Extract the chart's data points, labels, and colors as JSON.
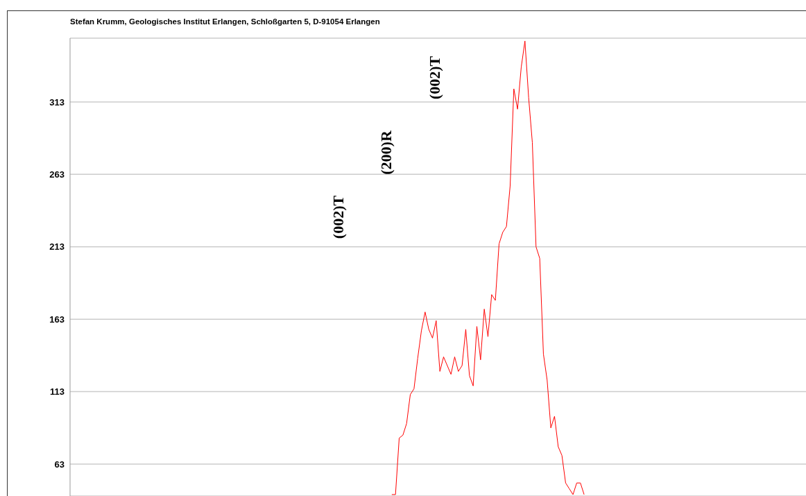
{
  "chart_data": {
    "type": "line",
    "title": "Stefan Krumm, Geologisches Institut Erlangen, Schloßgarten 5, D-91054 Erlangen",
    "annotations": [
      "(002)T",
      "(200)R",
      "(002)T"
    ],
    "categories": [
      null,
      null,
      null,
      null,
      null,
      null,
      null,
      null,
      null,
      null,
      null,
      null,
      null,
      null,
      null,
      null,
      null,
      null,
      null,
      null,
      null,
      null,
      null,
      null,
      null,
      null,
      null,
      null,
      null,
      null,
      null,
      null,
      null,
      null,
      null,
      null,
      null,
      null,
      null,
      null,
      null,
      null,
      null,
      null,
      null,
      null,
      null,
      null,
      null,
      null,
      null,
      null,
      null,
      null,
      null,
      null,
      null,
      null,
      null,
      null,
      null,
      null,
      null,
      null,
      null,
      null,
      null,
      null,
      null,
      null,
      null,
      null,
      null,
      null,
      null,
      null,
      null,
      null,
      null,
      null,
      null,
      null,
      null,
      null,
      null,
      null,
      null,
      null,
      null,
      null,
      null,
      null,
      null,
      null,
      null,
      null,
      null,
      null,
      null,
      null,
      null,
      null,
      null,
      null,
      null,
      null,
      null,
      null,
      null,
      null,
      null,
      null,
      null,
      null,
      null,
      null,
      null,
      null,
      null,
      null,
      null,
      null,
      null,
      null,
      null,
      null,
      null,
      null,
      null,
      null,
      null,
      null,
      null,
      null,
      null,
      null,
      null,
      null,
      null,
      null,
      null,
      null,
      null,
      null,
      null,
      null,
      null,
      null,
      null,
      null,
      null,
      null,
      null,
      null,
      null,
      null,
      null,
      null,
      null,
      null,
      null,
      null,
      null,
      null,
      null,
      null,
      null,
      null,
      null,
      null,
      null,
      null,
      null,
      null,
      null,
      null,
      null,
      null,
      null,
      null,
      null,
      null,
      null,
      null,
      null,
      null,
      null,
      null,
      null,
      null,
      null,
      null,
      null,
      null,
      null,
      null,
      null,
      null,
      null,
      null
    ],
    "series": [
      {
        "color": "#ff0000",
        "values": [
          null,
          null,
          null,
          null,
          null,
          null,
          null,
          null,
          null,
          null,
          null,
          null,
          null,
          null,
          null,
          null,
          null,
          null,
          null,
          null,
          null,
          null,
          null,
          null,
          null,
          null,
          null,
          null,
          null,
          null,
          null,
          null,
          null,
          null,
          null,
          null,
          null,
          null,
          null,
          null,
          null,
          null,
          null,
          null,
          null,
          null,
          null,
          null,
          null,
          null,
          null,
          null,
          null,
          null,
          null,
          null,
          null,
          null,
          null,
          null,
          null,
          null,
          null,
          null,
          null,
          null,
          null,
          null,
          null,
          null,
          null,
          null,
          null,
          null,
          null,
          null,
          null,
          null,
          null,
          null,
          null,
          null,
          null,
          null,
          null,
          null,
          null,
          42,
          42,
          81,
          83,
          91,
          111,
          115,
          136,
          155,
          168,
          156,
          150,
          162,
          127,
          137,
          131,
          125,
          137,
          127,
          131,
          156,
          124,
          117,
          158,
          135,
          170,
          151,
          180,
          176,
          215,
          223,
          227,
          255,
          322,
          308,
          337,
          355,
          316,
          285,
          213,
          205,
          139,
          121,
          88,
          96,
          75,
          69,
          50,
          46,
          42,
          50,
          50,
          42,
          null,
          null,
          null,
          null,
          null,
          null,
          null,
          null,
          null,
          null,
          null,
          null,
          null,
          null,
          null,
          null,
          null,
          null,
          null,
          null,
          null,
          null,
          null,
          null,
          null,
          null,
          null,
          null,
          null,
          null,
          null,
          null,
          null,
          null,
          null,
          null,
          null,
          null,
          null,
          null,
          null,
          null,
          null,
          null,
          null,
          null,
          null,
          null,
          null,
          null,
          null,
          null,
          null,
          null,
          null,
          null,
          null,
          null,
          null,
          null
        ]
      }
    ],
    "ylim": [
      41,
      357
    ],
    "yticks": [
      63,
      113,
      163,
      213,
      263,
      313
    ],
    "grid": "y",
    "tick_labels": "y"
  }
}
